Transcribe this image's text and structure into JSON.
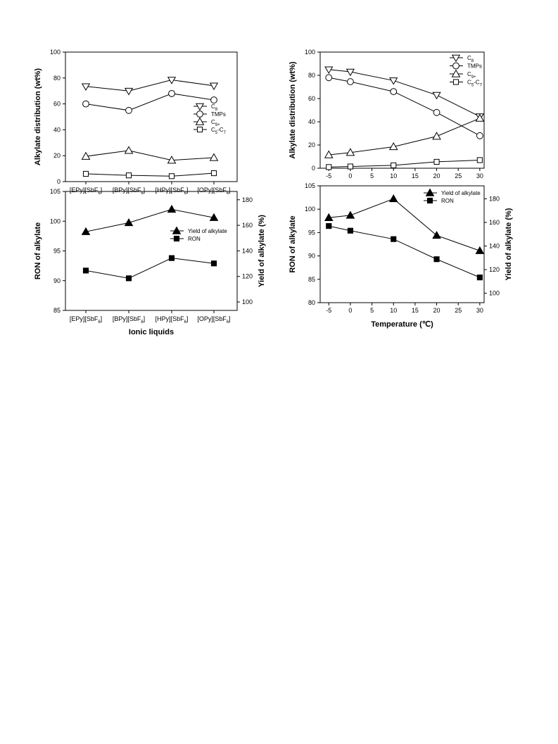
{
  "chart_data": [
    {
      "id": "a",
      "type": "line",
      "ylabel": "Alkylate distribution (wt%)",
      "ylim": [
        0,
        100
      ],
      "yticks": [
        "0",
        "20",
        "40",
        "60",
        "80",
        "100"
      ],
      "categories": [
        "[EPy][SbF6]",
        "[BPy][SbF6]",
        "[HPy][SbF6]",
        "[OPy][SbF6]"
      ],
      "grid": false,
      "legend_position": "center-right",
      "series": [
        {
          "name": "C8",
          "marker": "triangle-down-open",
          "values": [
            73.5,
            70,
            78.5,
            74
          ]
        },
        {
          "name": "TMPs",
          "marker": "circle-open",
          "values": [
            60,
            55,
            68,
            63
          ]
        },
        {
          "name": "C9+",
          "marker": "triangle-up-open",
          "values": [
            19.5,
            24,
            16.5,
            18.5
          ]
        },
        {
          "name": "C5-C7",
          "marker": "square-open",
          "values": [
            6,
            4.8,
            4.2,
            6.5
          ]
        }
      ]
    },
    {
      "id": "b",
      "type": "line",
      "xlabel": "Ionic liquids",
      "ylabel": "RON of alkylate",
      "y2label": "Yield of alkylate (%)",
      "ylim": [
        85,
        105
      ],
      "yticks": [
        "85",
        "90",
        "95",
        "100",
        "105"
      ],
      "y2lim": [
        93.4,
        186.5
      ],
      "y2ticks": [
        "100",
        "120",
        "140",
        "160",
        "180"
      ],
      "categories": [
        "[EPy][SbF6]",
        "[BPy][SbF6]",
        "[HPy][SbF6]",
        "[OPy][SbF6]"
      ],
      "grid": false,
      "legend_position": "center-right",
      "series": [
        {
          "name": "Yield of alkylate",
          "axis": "right",
          "marker": "triangle-up-filled",
          "values": [
            155,
            162,
            172.5,
            166
          ]
        },
        {
          "name": "RON",
          "axis": "left",
          "marker": "square-filled",
          "values": [
            91.7,
            90.4,
            93.8,
            92.9
          ]
        }
      ]
    },
    {
      "id": "c",
      "type": "line",
      "ylabel": "Alkylate distribution (wt%)",
      "ylim": [
        0,
        100
      ],
      "yticks": [
        "0",
        "20",
        "40",
        "60",
        "80",
        "100"
      ],
      "xlim": [
        -7,
        31
      ],
      "xticks": [
        "-5",
        "0",
        "5",
        "10",
        "15",
        "20",
        "25",
        "30"
      ],
      "x": [
        -5,
        0,
        10,
        20,
        30
      ],
      "grid": false,
      "legend_position": "top-right",
      "series": [
        {
          "name": "C8",
          "marker": "triangle-down-open",
          "values": [
            85,
            83,
            75.5,
            63,
            44.5
          ]
        },
        {
          "name": "TMPs",
          "marker": "circle-open",
          "values": [
            78,
            74.5,
            66,
            48,
            28
          ]
        },
        {
          "name": "C9+",
          "marker": "triangle-up-open",
          "values": [
            11.5,
            13.5,
            18.5,
            27.5,
            43
          ]
        },
        {
          "name": "C5-C7",
          "marker": "square-open",
          "values": [
            1,
            1.5,
            2.5,
            5.5,
            7
          ]
        }
      ]
    },
    {
      "id": "d",
      "type": "line",
      "xlabel": "Temperature (℃)",
      "ylabel": "RON of alkylate",
      "y2label": "Yield of alkylate (%)",
      "ylim": [
        80,
        105
      ],
      "yticks": [
        "80",
        "85",
        "90",
        "95",
        "100",
        "105"
      ],
      "y2lim": [
        92,
        191
      ],
      "y2ticks": [
        "100",
        "120",
        "140",
        "160",
        "180"
      ],
      "xlim": [
        -7,
        31
      ],
      "xticks": [
        "-5",
        "0",
        "5",
        "10",
        "15",
        "20",
        "25",
        "30"
      ],
      "x": [
        -5,
        0,
        10,
        20,
        30
      ],
      "grid": false,
      "legend_position": "top-right",
      "series": [
        {
          "name": "Yield of alkylate",
          "axis": "right",
          "marker": "triangle-up-filled",
          "values": [
            164,
            166,
            180,
            149,
            136
          ]
        },
        {
          "name": "RON",
          "axis": "left",
          "marker": "square-filled",
          "values": [
            96.4,
            95.4,
            93.6,
            89.3,
            85.4
          ]
        }
      ]
    }
  ]
}
